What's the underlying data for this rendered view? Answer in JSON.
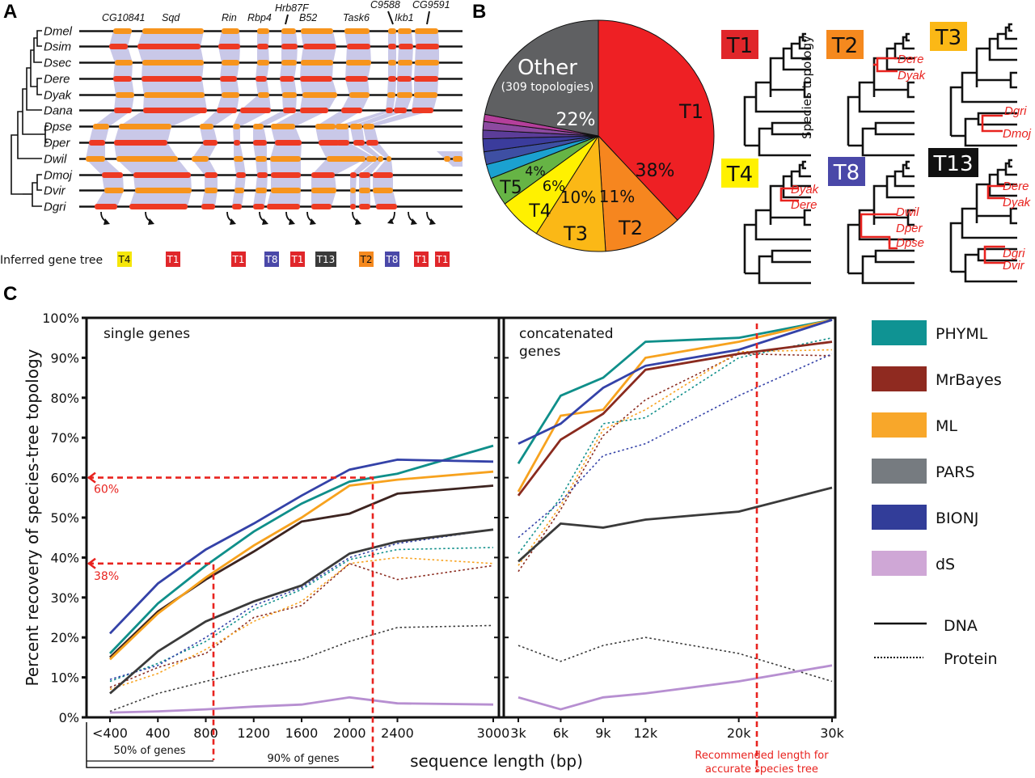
{
  "panels": {
    "a": "A",
    "b": "B",
    "c": "C"
  },
  "panel_a": {
    "species": [
      "Dmel",
      "Dsim",
      "Dsec",
      "Dere",
      "Dyak",
      "Dana",
      "Dpse",
      "Dper",
      "Dwil",
      "Dmoj",
      "Dvir",
      "Dgri"
    ],
    "genes": [
      "CG10841",
      "Sqd",
      "Rin",
      "Rbp4",
      "Hrb87F",
      "B52",
      "Task6",
      "C9588",
      "Ikb1",
      "CG9591"
    ],
    "inferred_label": "Inferred gene tree",
    "inferred_tags": [
      {
        "label": "T4",
        "color": "#f5e60a",
        "text_color": "#111"
      },
      {
        "label": "T1",
        "color": "#e0262a",
        "text_color": "#fff"
      },
      {
        "label": "T1",
        "color": "#e0262a",
        "text_color": "#fff"
      },
      {
        "label": "T8",
        "color": "#4a48a8",
        "text_color": "#fff"
      },
      {
        "label": "T1",
        "color": "#e0262a",
        "text_color": "#fff"
      },
      {
        "label": "T13",
        "color": "#3a3a3a",
        "text_color": "#fff"
      },
      {
        "label": "T2",
        "color": "#f5891e",
        "text_color": "#111"
      },
      {
        "label": "T8",
        "color": "#4a48a8",
        "text_color": "#fff"
      },
      {
        "label": "T1",
        "color": "#e0262a",
        "text_color": "#fff"
      },
      {
        "label": "T1",
        "color": "#e0262a",
        "text_color": "#fff"
      }
    ],
    "colors": {
      "orange": "#f7941d",
      "red": "#ee3a23",
      "band": "#c9c8e8"
    }
  },
  "panel_b": {
    "chart_data": {
      "type": "pie",
      "title": "",
      "slices": [
        {
          "label": "T1",
          "value": 38,
          "display": "38%",
          "color": "#ee2024"
        },
        {
          "label": "T2",
          "value": 11,
          "display": "11%",
          "color": "#f6861f"
        },
        {
          "label": "T3",
          "value": 10,
          "display": "10%",
          "color": "#fbb816"
        },
        {
          "label": "T4",
          "value": 6,
          "display": "6%",
          "color": "#fff100"
        },
        {
          "label": "T5",
          "value": 4,
          "display": "4%",
          "color": "#66b445"
        },
        {
          "label": "",
          "value": 2,
          "display": "",
          "color": "#1ba1d0"
        },
        {
          "label": "",
          "value": 1.8,
          "display": "",
          "color": "#3e4fa3"
        },
        {
          "label": "",
          "value": 1.8,
          "display": "",
          "color": "#3b3c9c"
        },
        {
          "label": "",
          "value": 1.2,
          "display": "",
          "color": "#5c3d99"
        },
        {
          "label": "",
          "value": 1.2,
          "display": "",
          "color": "#8c4aa0"
        },
        {
          "label": "",
          "value": 1,
          "display": "",
          "color": "#b43f9b"
        },
        {
          "label": "Other",
          "sublabel": "(309 topologies)",
          "value": 22,
          "display": "22%",
          "color": "#5f6062"
        }
      ]
    },
    "topologies": [
      {
        "label": "T1",
        "color": "#e0262a",
        "text_color": "#111",
        "note": "Species topology",
        "red_taxa": []
      },
      {
        "label": "T2",
        "color": "#f5891e",
        "text_color": "#111",
        "red_taxa": [
          "Dere",
          "Dyak"
        ]
      },
      {
        "label": "T3",
        "color": "#fbb816",
        "text_color": "#111",
        "red_taxa": [
          "Dgri",
          "Dmoj"
        ]
      },
      {
        "label": "T4",
        "color": "#fff100",
        "text_color": "#111",
        "red_taxa": [
          "Dyak",
          "Dere"
        ]
      },
      {
        "label": "T8",
        "color": "#4a48a8",
        "text_color": "#fff",
        "red_taxa": [
          "Dwil",
          "Dper",
          "Dpse"
        ]
      },
      {
        "label": "T13",
        "color": "#111111",
        "text_color": "#fff",
        "red_taxa": [
          "Dere",
          "Dyak",
          "Dgri",
          "Dvir"
        ]
      }
    ]
  },
  "chart_data": {
    "type": "line",
    "ylabel": "Percent recovery of species-tree topology",
    "xlabel": "sequence length (bp)",
    "ylim": [
      0,
      100
    ],
    "yticks": [
      "0%",
      "10%",
      "20%",
      "30%",
      "40%",
      "50%",
      "60%",
      "70%",
      "80%",
      "90%",
      "100%"
    ],
    "grid": false,
    "legend_position": "right",
    "subplots": [
      {
        "title": "single genes",
        "x_labels": [
          "<400",
          "400",
          "800",
          "1200",
          "1600",
          "2000",
          "2400",
          "3000"
        ],
        "x_positions": [
          0,
          1,
          2,
          3,
          4,
          5,
          6,
          8
        ],
        "series": [
          {
            "name": "PHYML",
            "style": "DNA",
            "color": "#0f8f8a",
            "values": [
              16,
              28.5,
              38,
              46.5,
              53.5,
              59,
              61,
              68
            ]
          },
          {
            "name": "MrBayes",
            "style": "DNA",
            "color": "#3d2420",
            "values": [
              15,
              26.5,
              34.5,
              41.5,
              49,
              51,
              56,
              58
            ]
          },
          {
            "name": "ML",
            "style": "DNA",
            "color": "#f7a21e",
            "values": [
              14.5,
              26,
              35,
              43,
              50,
              58,
              59.5,
              61.5
            ]
          },
          {
            "name": "PARS",
            "style": "DNA",
            "color": "#3a3a3a",
            "values": [
              6,
              16.5,
              24,
              29,
              33,
              41,
              44,
              47
            ]
          },
          {
            "name": "BIONJ",
            "style": "DNA",
            "color": "#3442a8",
            "values": [
              21,
              33.5,
              42,
              48.5,
              55.5,
              62,
              64.5,
              64
            ]
          },
          {
            "name": "dS",
            "style": "DNA",
            "color": "#b78fd1",
            "values": [
              1.2,
              1.5,
              2,
              2.7,
              3.2,
              5,
              3.5,
              3.2
            ]
          },
          {
            "name": "PHYML",
            "style": "Protein",
            "color": "#0f8f8a",
            "values": [
              9,
              13.5,
              19,
              27,
              32,
              39.5,
              42,
              42.5
            ]
          },
          {
            "name": "MrBayes",
            "style": "Protein",
            "color": "#8a2a1e",
            "values": [
              7.5,
              12.5,
              16,
              25,
              28,
              38.5,
              34.5,
              38
            ]
          },
          {
            "name": "ML",
            "style": "Protein",
            "color": "#f7a21e",
            "values": [
              7,
              11,
              17,
              24,
              29,
              38.5,
              40,
              38.5
            ]
          },
          {
            "name": "PARS",
            "style": "Protein",
            "color": "#3a3a3a",
            "values": [
              1.5,
              6,
              9,
              12,
              14.5,
              19,
              22.5,
              23
            ]
          },
          {
            "name": "BIONJ",
            "style": "Protein",
            "color": "#3442a8",
            "values": [
              9.5,
              13,
              20,
              28,
              32.5,
              40,
              43.5,
              47
            ]
          }
        ],
        "annotations": [
          {
            "text": "60%",
            "y": 60,
            "x_at": 2200
          },
          {
            "text": "38%",
            "y": 38,
            "x_at": 850
          },
          {
            "text": "50% of genes",
            "x_at": 850
          },
          {
            "text": "90% of genes",
            "x_at": 2200
          }
        ]
      },
      {
        "title": "concatenated genes",
        "x_labels": [
          "3k",
          "6k",
          "9k",
          "12k",
          "20k",
          "30k"
        ],
        "x_positions": [
          0,
          1,
          2,
          3,
          5.2,
          7.4
        ],
        "series": [
          {
            "name": "PHYML",
            "style": "DNA",
            "color": "#0f8f8a",
            "values": [
              63.5,
              80.5,
              85,
              94,
              95,
              99.5
            ]
          },
          {
            "name": "MrBayes",
            "style": "DNA",
            "color": "#8a2a1e",
            "values": [
              55.5,
              69.5,
              76,
              87,
              91,
              94
            ]
          },
          {
            "name": "ML",
            "style": "DNA",
            "color": "#f7a21e",
            "values": [
              56.5,
              75.5,
              77,
              90,
              94,
              99.5
            ]
          },
          {
            "name": "PARS",
            "style": "DNA",
            "color": "#3a3a3a",
            "values": [
              39,
              48.5,
              47.5,
              49.5,
              51.5,
              57.5
            ]
          },
          {
            "name": "BIONJ",
            "style": "DNA",
            "color": "#3442a8",
            "values": [
              68.5,
              73.5,
              82.5,
              88,
              92,
              99.5
            ]
          },
          {
            "name": "dS",
            "style": "DNA",
            "color": "#b78fd1",
            "values": [
              5,
              2,
              5,
              6,
              9,
              13
            ]
          },
          {
            "name": "PHYML",
            "style": "Protein",
            "color": "#0f8f8a",
            "values": [
              41,
              55,
              73.5,
              75,
              90,
              95
            ]
          },
          {
            "name": "MrBayes",
            "style": "Protein",
            "color": "#8a2a1e",
            "values": [
              36.5,
              52,
              70.5,
              79.5,
              91,
              90.5
            ]
          },
          {
            "name": "ML",
            "style": "Protein",
            "color": "#f7a21e",
            "values": [
              38,
              53,
              72,
              77,
              91.5,
              92
            ]
          },
          {
            "name": "PARS",
            "style": "Protein",
            "color": "#3a3a3a",
            "values": [
              18,
              14,
              18,
              20,
              16,
              9
            ]
          },
          {
            "name": "BIONJ",
            "style": "Protein",
            "color": "#3442a8",
            "values": [
              45,
              54,
              65.5,
              68.5,
              80.5,
              91
            ]
          }
        ],
        "annotations": [
          {
            "text": "Recommended length for accurate species tree",
            "x_at": "22k"
          }
        ]
      }
    ],
    "legend": [
      {
        "label": "PHYML",
        "color": "#0f9393"
      },
      {
        "label": "MrBayes",
        "color": "#8f2a20"
      },
      {
        "label": "ML",
        "color": "#f8a72a"
      },
      {
        "label": "PARS",
        "color": "#767b80"
      },
      {
        "label": "BIONJ",
        "color": "#323d99"
      },
      {
        "label": "dS",
        "color": "#cfa7d6"
      }
    ],
    "line_styles": [
      {
        "label": "DNA",
        "dash": false
      },
      {
        "label": "Protein",
        "dash": true
      }
    ]
  },
  "panel_c_text": {
    "single_title": "single genes",
    "concat_title_1": "concatenated",
    "concat_title_2": "genes",
    "ann60": "60%",
    "ann38": "38%",
    "half_genes": "50% of genes",
    "ninety_genes": "90% of genes",
    "recommended_1": "Recommended length for",
    "recommended_2": "accurate species tree",
    "species_topology": "Species topology",
    "other_label": "Other",
    "other_sub": "(309 topologies)"
  }
}
